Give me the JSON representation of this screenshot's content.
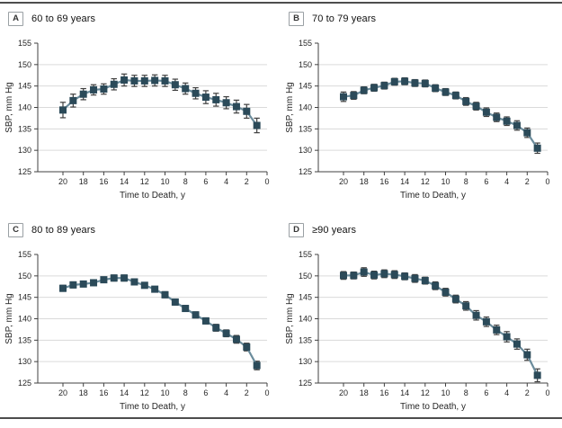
{
  "colors": {
    "marker": "#2B4A59",
    "line": "#6B8C9C",
    "error_bar": "#3F3F3F",
    "grid": "#DADADA",
    "axis": "#404040",
    "text": "#262626",
    "rule": "#4D4D4D"
  },
  "panels": [
    {
      "label": "A",
      "title": "60 to 69 years"
    },
    {
      "label": "B",
      "title": "70 to 79 years"
    },
    {
      "label": "C",
      "title": "80 to 89 years"
    },
    {
      "label": "D",
      "title": "≥90 years"
    }
  ],
  "chart_data": [
    {
      "type": "line",
      "title": "60 to 69 years",
      "xlabel": "Time to Death, y",
      "ylabel": "SBP, mm Hg",
      "x_reversed": true,
      "xlim": [
        0,
        20
      ],
      "ylim": [
        125,
        155
      ],
      "xticks": [
        20,
        18,
        16,
        14,
        12,
        10,
        8,
        6,
        4,
        2,
        0
      ],
      "yticks": [
        125,
        130,
        135,
        140,
        145,
        150,
        155
      ],
      "grid": true,
      "marker": "square",
      "x": [
        20,
        19,
        18,
        17,
        16,
        15,
        14,
        13,
        12,
        11,
        10,
        9,
        8,
        7,
        6,
        5,
        4,
        3,
        2,
        1
      ],
      "values": [
        139.4,
        141.6,
        143.1,
        144.1,
        144.3,
        145.4,
        146.4,
        146.2,
        146.2,
        146.3,
        146.2,
        145.3,
        144.4,
        143.3,
        142.4,
        141.8,
        141.1,
        140.2,
        139.1,
        135.8
      ],
      "errors": [
        1.8,
        1.5,
        1.3,
        1.2,
        1.2,
        1.3,
        1.4,
        1.3,
        1.3,
        1.3,
        1.3,
        1.3,
        1.3,
        1.3,
        1.5,
        1.5,
        1.4,
        1.5,
        1.6,
        1.7
      ]
    },
    {
      "type": "line",
      "title": "70 to 79 years",
      "xlabel": "Time to Death, y",
      "ylabel": "SBP, mm Hg",
      "x_reversed": true,
      "xlim": [
        0,
        20
      ],
      "ylim": [
        125,
        155
      ],
      "xticks": [
        20,
        18,
        16,
        14,
        12,
        10,
        8,
        6,
        4,
        2,
        0
      ],
      "yticks": [
        125,
        130,
        135,
        140,
        145,
        150,
        155
      ],
      "grid": true,
      "marker": "square",
      "x": [
        20,
        19,
        18,
        17,
        16,
        15,
        14,
        13,
        12,
        11,
        10,
        9,
        8,
        7,
        6,
        5,
        4,
        3,
        2,
        1
      ],
      "values": [
        142.5,
        142.8,
        144.0,
        144.6,
        145.1,
        146.0,
        146.1,
        145.7,
        145.6,
        144.5,
        143.6,
        142.8,
        141.4,
        140.3,
        138.9,
        137.7,
        136.8,
        135.8,
        134.1,
        130.5
      ],
      "errors": [
        1.1,
        0.9,
        0.8,
        0.8,
        0.8,
        0.8,
        0.8,
        0.8,
        0.8,
        0.8,
        0.8,
        0.8,
        0.9,
        0.9,
        1.0,
        1.0,
        1.0,
        1.1,
        1.1,
        1.2
      ]
    },
    {
      "type": "line",
      "title": "80 to 89 years",
      "xlabel": "Time to Death, y",
      "ylabel": "SBP, mm Hg",
      "x_reversed": true,
      "xlim": [
        0,
        20
      ],
      "ylim": [
        125,
        155
      ],
      "xticks": [
        20,
        18,
        16,
        14,
        12,
        10,
        8,
        6,
        4,
        2,
        0
      ],
      "yticks": [
        125,
        130,
        135,
        140,
        145,
        150,
        155
      ],
      "grid": true,
      "marker": "square",
      "x": [
        20,
        19,
        18,
        17,
        16,
        15,
        14,
        13,
        12,
        11,
        10,
        9,
        8,
        7,
        6,
        5,
        4,
        3,
        2,
        1
      ],
      "values": [
        147.1,
        147.9,
        148.1,
        148.4,
        149.1,
        149.5,
        149.5,
        148.6,
        147.8,
        146.9,
        145.6,
        143.9,
        142.4,
        140.9,
        139.5,
        137.9,
        136.6,
        135.2,
        133.4,
        129.1
      ],
      "errors": [
        0.7,
        0.7,
        0.6,
        0.6,
        0.6,
        0.7,
        0.7,
        0.6,
        0.6,
        0.6,
        0.7,
        0.7,
        0.7,
        0.7,
        0.7,
        0.8,
        0.8,
        0.9,
        0.9,
        1.0
      ]
    },
    {
      "type": "line",
      "title": "≥90 years",
      "xlabel": "Time to Death, y",
      "ylabel": "SBP, mm Hg",
      "x_reversed": true,
      "xlim": [
        0,
        20
      ],
      "ylim": [
        125,
        155
      ],
      "xticks": [
        20,
        18,
        16,
        14,
        12,
        10,
        8,
        6,
        4,
        2,
        0
      ],
      "yticks": [
        125,
        130,
        135,
        140,
        145,
        150,
        155
      ],
      "grid": true,
      "marker": "square",
      "x": [
        20,
        19,
        18,
        17,
        16,
        15,
        14,
        13,
        12,
        11,
        10,
        9,
        8,
        7,
        6,
        5,
        4,
        3,
        2,
        1
      ],
      "values": [
        150.1,
        150.1,
        150.9,
        150.2,
        150.5,
        150.3,
        149.9,
        149.4,
        148.9,
        147.7,
        146.2,
        144.6,
        143.0,
        140.8,
        139.3,
        137.4,
        135.8,
        134.1,
        131.6,
        126.8
      ],
      "errors": [
        0.9,
        0.8,
        1.0,
        0.9,
        0.9,
        0.9,
        0.8,
        0.9,
        0.8,
        0.9,
        0.9,
        0.9,
        1.0,
        1.1,
        1.1,
        1.1,
        1.2,
        1.2,
        1.3,
        1.5
      ]
    }
  ]
}
